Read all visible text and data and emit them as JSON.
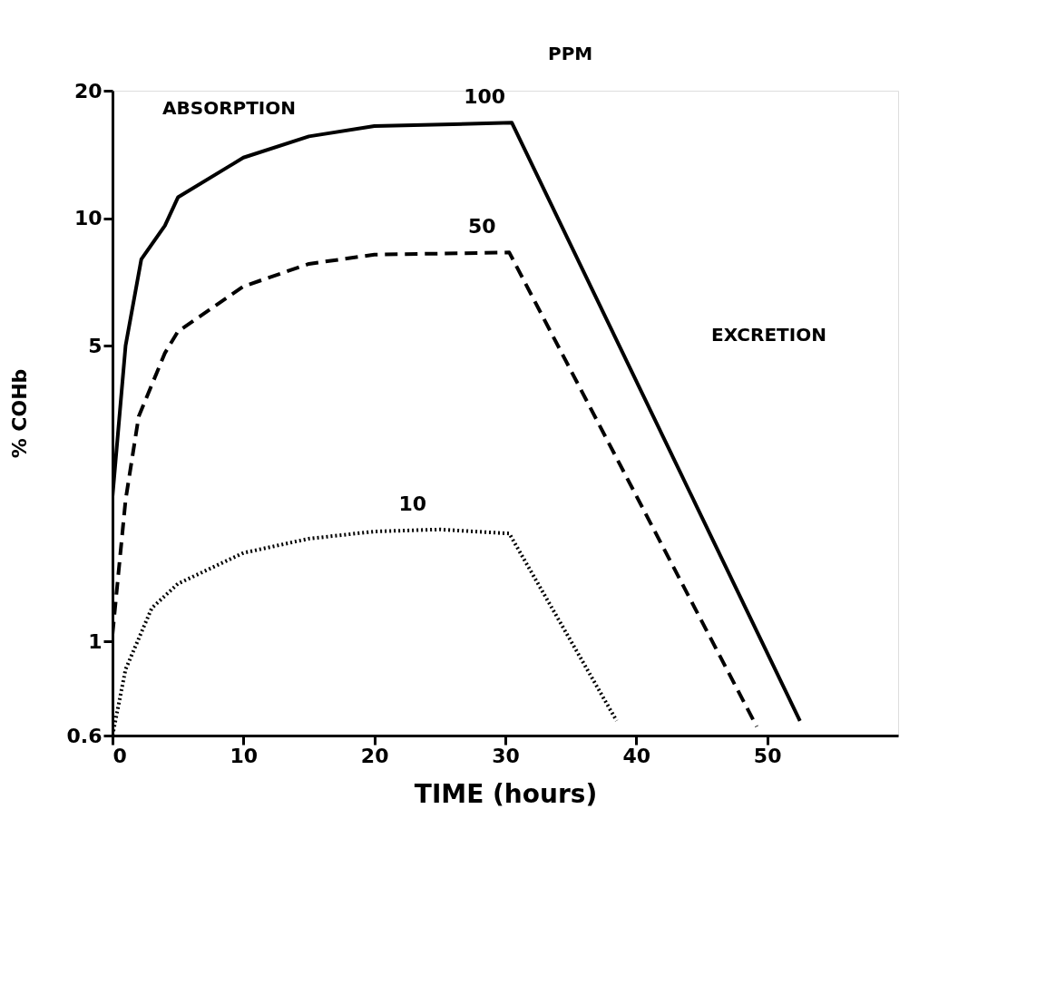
{
  "chart_data": {
    "type": "line",
    "xlabel": "TIME (hours)",
    "ylabel": "% COHb",
    "log": "y",
    "xlim": [
      0,
      60
    ],
    "ylim": [
      0.6,
      20
    ],
    "xticks": [
      0,
      10,
      20,
      30,
      40,
      50
    ],
    "yticks": [
      0.6,
      1,
      5,
      10,
      20
    ],
    "grid": false,
    "legend": false,
    "marker": "none",
    "annotations": [
      "ABSORPTION",
      "EXCRETION",
      "PPM"
    ],
    "series": [
      {
        "name": "100",
        "color": "#000000",
        "line_style": "solid",
        "x": [
          0,
          1,
          2.2,
          4,
          5,
          10,
          15,
          20,
          30.5,
          52.5
        ],
        "values": [
          2.2,
          5.0,
          8.0,
          9.6,
          11.2,
          13.9,
          15.6,
          16.5,
          16.8,
          0.65
        ]
      },
      {
        "name": "50",
        "color": "#000000",
        "line_style": "dashed",
        "x": [
          0,
          1,
          2,
          4,
          5,
          10,
          15,
          20,
          30.3,
          49.2
        ],
        "values": [
          1.04,
          2.16,
          3.4,
          4.8,
          5.4,
          6.9,
          7.8,
          8.2,
          8.3,
          0.63
        ]
      },
      {
        "name": "10",
        "color": "#000000",
        "line_style": "dotted",
        "x": [
          0,
          1,
          3,
          5,
          10,
          15,
          20,
          25,
          30.3,
          38.5
        ],
        "values": [
          0.6,
          0.86,
          1.2,
          1.37,
          1.62,
          1.75,
          1.82,
          1.84,
          1.8,
          0.65
        ]
      }
    ]
  }
}
